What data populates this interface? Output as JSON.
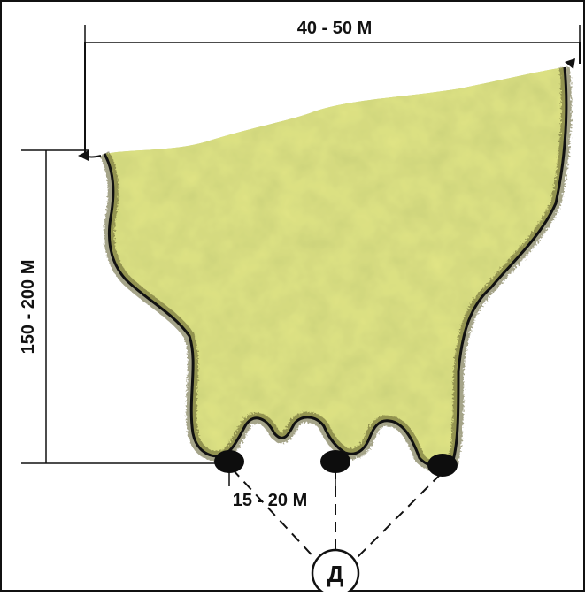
{
  "diagram": {
    "width_label": "40 - 50 М",
    "height_label": "150 - 200 М",
    "spacing_label": "15 - 20 М",
    "center_label": "Д",
    "colors": {
      "vegetation_light": "#c7cf6a",
      "vegetation_dark": "#8f9a35",
      "edge": "#5d5a2a",
      "stroke": "#111111",
      "marker": "#0d0d0d"
    },
    "icons": [
      "left-arrow-icon",
      "right-arrow-icon",
      "marker-icon"
    ]
  }
}
